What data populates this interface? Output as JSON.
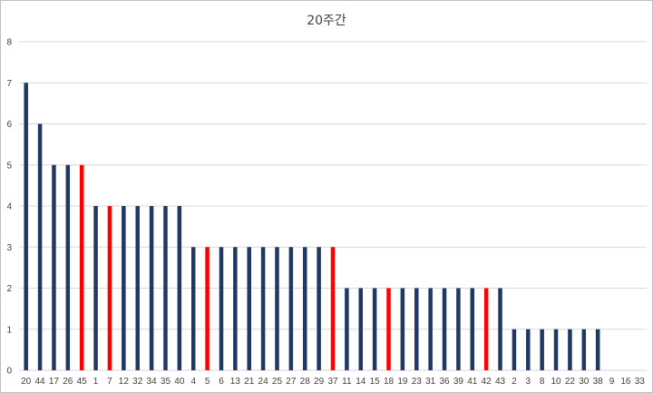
{
  "chart_data": {
    "type": "bar",
    "title": "20주간",
    "xlabel": "",
    "ylabel": "",
    "ylim": [
      0,
      8
    ],
    "yticks": [
      0,
      1,
      2,
      3,
      4,
      5,
      6,
      7,
      8
    ],
    "grid": true,
    "legend": "none",
    "colors": {
      "default": "#1f3864",
      "highlight": "#ff0000",
      "grid": "#d9d9d9"
    },
    "categories": [
      "20",
      "44",
      "17",
      "26",
      "45",
      "1",
      "7",
      "12",
      "32",
      "34",
      "35",
      "40",
      "4",
      "5",
      "6",
      "13",
      "21",
      "24",
      "25",
      "27",
      "28",
      "29",
      "37",
      "11",
      "14",
      "15",
      "18",
      "19",
      "23",
      "31",
      "36",
      "39",
      "41",
      "42",
      "43",
      "2",
      "3",
      "8",
      "10",
      "22",
      "30",
      "38",
      "9",
      "16",
      "33"
    ],
    "values": [
      7,
      6,
      5,
      5,
      5,
      4,
      4,
      4,
      4,
      4,
      4,
      4,
      3,
      3,
      3,
      3,
      3,
      3,
      3,
      3,
      3,
      3,
      3,
      2,
      2,
      2,
      2,
      2,
      2,
      2,
      2,
      2,
      2,
      2,
      2,
      1,
      1,
      1,
      1,
      1,
      1,
      1,
      0,
      0,
      0
    ],
    "highlighted": [
      "45",
      "7",
      "5",
      "37",
      "18",
      "42"
    ]
  }
}
